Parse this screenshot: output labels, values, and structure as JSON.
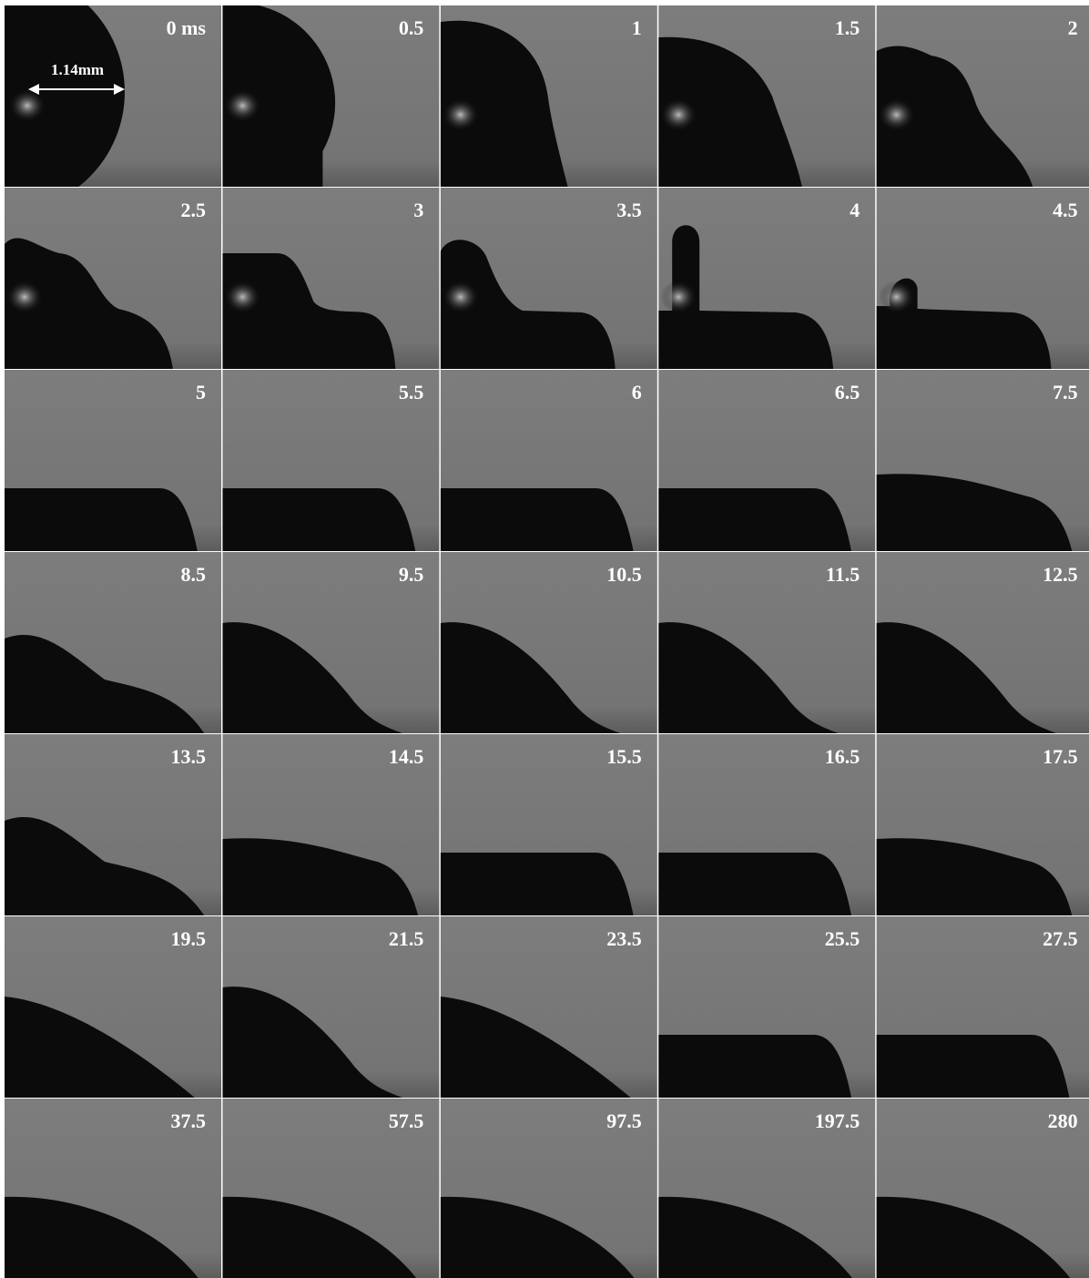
{
  "scale_label": "1.14mm",
  "panels": [
    {
      "label": "0 ms"
    },
    {
      "label": "0.5"
    },
    {
      "label": "1"
    },
    {
      "label": "1.5"
    },
    {
      "label": "2"
    },
    {
      "label": "2.5"
    },
    {
      "label": "3"
    },
    {
      "label": "3.5"
    },
    {
      "label": "4"
    },
    {
      "label": "4.5"
    },
    {
      "label": "5"
    },
    {
      "label": "5.5"
    },
    {
      "label": "6"
    },
    {
      "label": "6.5"
    },
    {
      "label": "7.5"
    },
    {
      "label": "8.5"
    },
    {
      "label": "9.5"
    },
    {
      "label": "10.5"
    },
    {
      "label": "11.5"
    },
    {
      "label": "12.5"
    },
    {
      "label": "13.5"
    },
    {
      "label": "14.5"
    },
    {
      "label": "15.5"
    },
    {
      "label": "16.5"
    },
    {
      "label": "17.5"
    },
    {
      "label": "19.5"
    },
    {
      "label": "21.5"
    },
    {
      "label": "23.5"
    },
    {
      "label": "25.5"
    },
    {
      "label": "27.5"
    },
    {
      "label": "37.5"
    },
    {
      "label": "57.5"
    },
    {
      "label": "97.5"
    },
    {
      "label": "197.5"
    },
    {
      "label": "280"
    }
  ]
}
